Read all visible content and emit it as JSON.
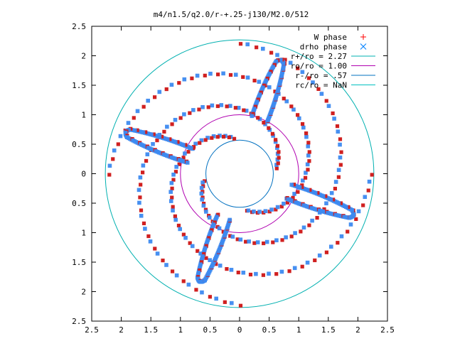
{
  "chart_data": {
    "type": "scatter",
    "title": "m4/n1.5/q2.0/r-+.25-j130/M2.0/512",
    "xlabel": "",
    "ylabel": "",
    "xlim": [
      -2.5,
      2.5
    ],
    "ylim": [
      -2.5,
      2.5
    ],
    "x_tick_values": [
      -2.5,
      -2,
      -1.5,
      -1,
      -0.5,
      0,
      0.5,
      1,
      1.5,
      2,
      2.5
    ],
    "x_tick_labels": [
      "2.5",
      "2",
      "1.5",
      "1",
      "0.5",
      "0",
      "0.5",
      "1",
      "1.5",
      "2",
      "2.5"
    ],
    "y_tick_values": [
      2.5,
      2,
      1.5,
      1,
      0.5,
      0,
      -0.5,
      -1,
      -1.5,
      -2,
      -2.5
    ],
    "y_tick_labels": [
      "2.5",
      "2",
      "1.5",
      "1",
      "0.5",
      "0",
      "0.5",
      "1",
      "1.5",
      "2",
      "2.5"
    ],
    "grid": false,
    "legend_position": "top-right",
    "legend": [
      {
        "label": "W phase",
        "marker": "plus",
        "color": "#ff0000"
      },
      {
        "label": "drho phase",
        "marker": "cross",
        "color": "#0080ff"
      },
      {
        "label": "r+/ro = 2.27",
        "marker": "line",
        "color": "#00b0b0"
      },
      {
        "label": "ro/ro = 1.00",
        "marker": "line",
        "color": "#b000b0"
      },
      {
        "label": "r-/ro = .57",
        "marker": "line",
        "color": "#0070c0"
      },
      {
        "label": "rc/ro = NaN",
        "marker": "line",
        "color": "#00c0c0"
      }
    ],
    "circles": [
      {
        "name": "r+/ro = 2.27",
        "radius": 2.27,
        "color": "#00b0b0"
      },
      {
        "name": "ro/ro = 1.00",
        "radius": 1.0,
        "color": "#b000b0"
      },
      {
        "name": "r-/ro = .57",
        "radius": 0.57,
        "color": "#0070c0"
      }
    ],
    "series_colors": {
      "w": "#ff0000",
      "w_marker_fill": "#d02020",
      "drho": "#3d8af0"
    },
    "spirals": [
      {
        "start_angle_deg": 100,
        "r_start": 0.62,
        "r_end": 2.22,
        "sweep_deg": 260
      },
      {
        "start_angle_deg": 190,
        "r_start": 0.62,
        "r_end": 2.22,
        "sweep_deg": 260
      },
      {
        "start_angle_deg": 280,
        "r_start": 0.62,
        "r_end": 2.22,
        "sweep_deg": 260
      },
      {
        "start_angle_deg": 10,
        "r_start": 0.62,
        "r_end": 2.22,
        "sweep_deg": 260
      }
    ],
    "fingers": [
      {
        "center_angle_deg": 70,
        "r_inner": 1.0,
        "r_outer": 2.0,
        "width_deg": 16
      },
      {
        "center_angle_deg": 160,
        "r_inner": 0.9,
        "r_outer": 2.0,
        "width_deg": 16
      },
      {
        "center_angle_deg": 250,
        "r_inner": 0.8,
        "r_outer": 1.9,
        "width_deg": 16
      },
      {
        "center_angle_deg": 340,
        "r_inner": 0.9,
        "r_outer": 2.0,
        "width_deg": 16
      }
    ]
  }
}
